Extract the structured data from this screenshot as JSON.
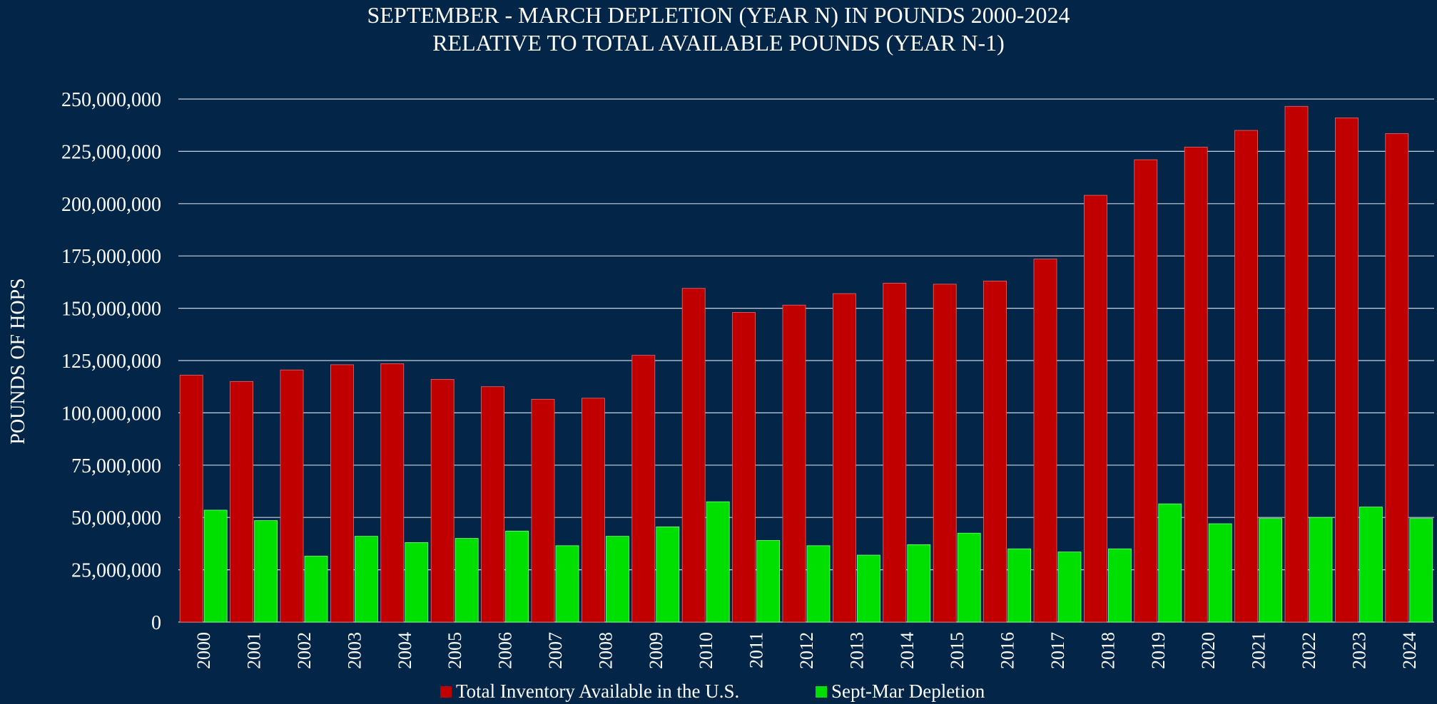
{
  "chart_data": {
    "type": "bar",
    "title": "SEPTEMBER - MARCH DEPLETION (YEAR N) IN POUNDS 2000-2024",
    "subtitle": "RELATIVE TO TOTAL AVAILABLE POUNDS (YEAR N-1)",
    "xlabel": "",
    "ylabel": "POUNDS OF HOPS",
    "ylim": [
      0,
      250000000
    ],
    "y_ticks": [
      0,
      25000000,
      50000000,
      75000000,
      100000000,
      125000000,
      150000000,
      175000000,
      200000000,
      225000000,
      250000000
    ],
    "y_tick_labels": [
      "0",
      "25,000,000",
      "50,000,000",
      "75,000,000",
      "100,000,000",
      "125,000,000",
      "150,000,000",
      "175,000,000",
      "200,000,000",
      "225,000,000",
      "250,000,000"
    ],
    "grid": true,
    "legend_position": "bottom",
    "categories": [
      "2000",
      "2001",
      "2002",
      "2003",
      "2004",
      "2005",
      "2006",
      "2007",
      "2008",
      "2009",
      "2010",
      "2011",
      "2012",
      "2013",
      "2014",
      "2015",
      "2016",
      "2017",
      "2018",
      "2019",
      "2020",
      "2021",
      "2022",
      "2023",
      "2024"
    ],
    "series": [
      {
        "name": "Total Inventory Available in the U.S.",
        "color": "#c00000",
        "values": [
          118000000,
          115000000,
          120500000,
          123000000,
          123500000,
          116000000,
          112500000,
          106500000,
          107000000,
          127500000,
          159500000,
          148000000,
          151500000,
          157000000,
          162000000,
          161500000,
          163000000,
          173500000,
          204000000,
          221000000,
          227000000,
          235000000,
          246500000,
          241000000,
          233500000
        ]
      },
      {
        "name": "Sept-Mar Depletion",
        "color": "#00e000",
        "values": [
          53500000,
          48500000,
          31500000,
          41000000,
          38000000,
          40000000,
          43500000,
          36500000,
          41000000,
          45500000,
          57500000,
          39000000,
          36500000,
          32000000,
          37000000,
          42500000,
          35000000,
          33500000,
          35000000,
          56500000,
          47000000,
          49500000,
          50000000,
          55000000,
          49500000
        ]
      }
    ]
  }
}
